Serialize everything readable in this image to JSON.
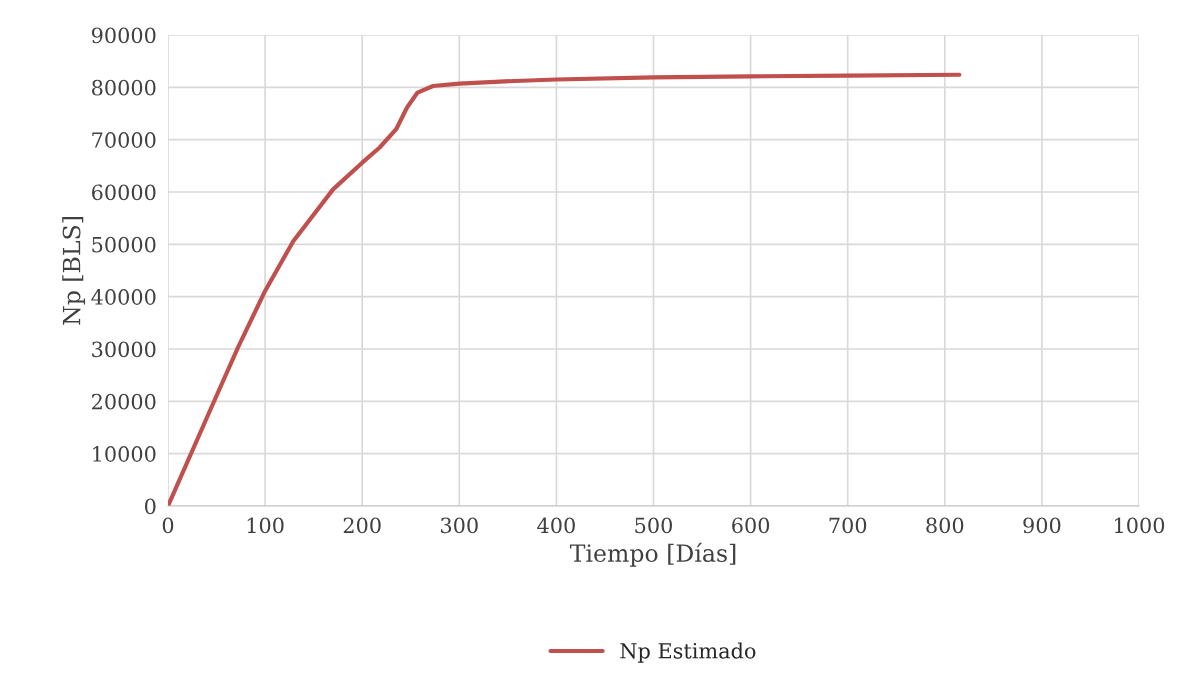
{
  "chart_data": {
    "type": "line",
    "xlabel": "Tiempo [Días]",
    "ylabel": "Np [BLS]",
    "series": [
      {
        "name": "Np Estimado",
        "color": "#c0504d",
        "x": [
          0,
          46,
          72,
          100,
          129,
          170,
          200,
          218,
          235,
          246,
          257,
          273,
          300,
          342,
          400,
          500,
          600,
          700,
          815
        ],
        "values": [
          0,
          19400,
          30250,
          41100,
          50600,
          60500,
          65600,
          68500,
          72000,
          76100,
          79000,
          80250,
          80700,
          81100,
          81500,
          81900,
          82100,
          82250,
          82400
        ]
      }
    ],
    "xlim": [
      0,
      1000
    ],
    "xticks": [
      0,
      100,
      200,
      300,
      400,
      500,
      600,
      700,
      800,
      900,
      1000
    ],
    "ylim": [
      0,
      90000
    ],
    "yticks": [
      0,
      10000,
      20000,
      30000,
      40000,
      50000,
      60000,
      70000,
      80000,
      90000
    ],
    "grid": true,
    "legend": "bottom",
    "marker": "none",
    "line_style": "solid"
  }
}
